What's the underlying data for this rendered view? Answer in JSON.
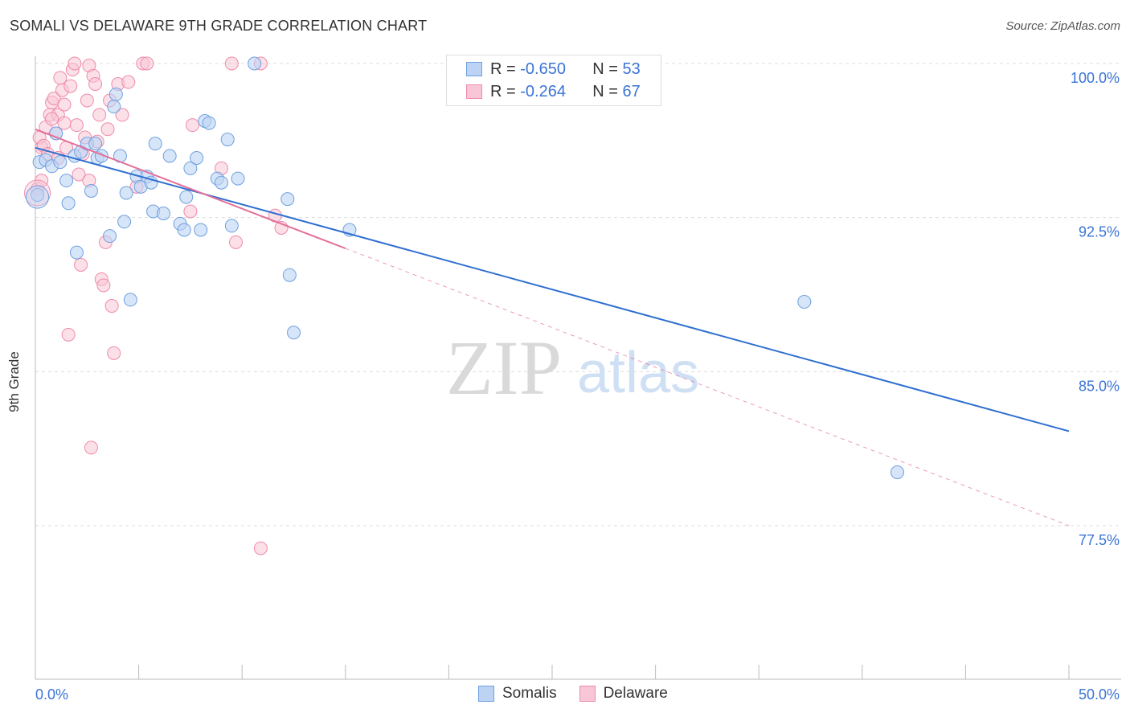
{
  "title": "SOMALI VS DELAWARE 9TH GRADE CORRELATION CHART",
  "source": "Source: ZipAtlas.com",
  "watermark": {
    "zip": "ZIP",
    "atlas": "atlas"
  },
  "legend": {
    "rows": [
      {
        "r_label": "R =",
        "r_value": "-0.650",
        "n_label": "N =",
        "n_value": "53"
      },
      {
        "r_label": "R =",
        "r_value": "-0.264",
        "n_label": "N =",
        "n_value": "67"
      }
    ]
  },
  "bottom_legend": [
    "Somalis",
    "Delaware"
  ],
  "chart_data": {
    "type": "scatter",
    "title": "SOMALI VS DELAWARE 9TH GRADE CORRELATION CHART",
    "ylabel": "9th Grade",
    "xlabel": "",
    "xlim": [
      0,
      50
    ],
    "ylim": [
      70,
      100.7
    ],
    "x_tick_labels": [
      "0.0%",
      "50.0%"
    ],
    "y_ticks": [
      77.5,
      85.0,
      92.5,
      100.0
    ],
    "y_tick_labels": [
      "77.5%",
      "85.0%",
      "92.5%",
      "100.0%"
    ],
    "grid": true,
    "colors": {
      "Somalis": "#6fa0e0",
      "Delaware": "#f08aaa",
      "somali_line": "#2f6fd0",
      "delaware_line": "#e36f9a"
    },
    "series": [
      {
        "name": "Somalis",
        "r": -0.65,
        "n": 53,
        "trend": {
          "x0": 0,
          "y0": 95.9,
          "x1": 50,
          "y1": 82.1
        },
        "points": [
          [
            0.1,
            93.6
          ],
          [
            0.2,
            95.2
          ],
          [
            0.5,
            95.3
          ],
          [
            0.8,
            95.0
          ],
          [
            1.0,
            96.6
          ],
          [
            1.2,
            95.2
          ],
          [
            1.5,
            94.3
          ],
          [
            1.6,
            93.2
          ],
          [
            1.9,
            95.5
          ],
          [
            2.0,
            90.8
          ],
          [
            2.2,
            95.7
          ],
          [
            2.5,
            96.1
          ],
          [
            2.7,
            93.8
          ],
          [
            2.9,
            96.1
          ],
          [
            3.0,
            95.4
          ],
          [
            3.2,
            95.5
          ],
          [
            3.6,
            91.6
          ],
          [
            3.8,
            97.9
          ],
          [
            3.9,
            98.5
          ],
          [
            4.1,
            95.5
          ],
          [
            4.3,
            92.3
          ],
          [
            4.4,
            93.7
          ],
          [
            4.6,
            88.5
          ],
          [
            4.9,
            94.5
          ],
          [
            5.1,
            94.0
          ],
          [
            5.4,
            94.5
          ],
          [
            5.6,
            94.2
          ],
          [
            5.7,
            92.8
          ],
          [
            5.8,
            96.1
          ],
          [
            6.2,
            92.7
          ],
          [
            6.5,
            95.5
          ],
          [
            7.0,
            92.2
          ],
          [
            7.2,
            91.9
          ],
          [
            7.3,
            93.5
          ],
          [
            7.5,
            94.9
          ],
          [
            7.8,
            95.4
          ],
          [
            8.0,
            91.9
          ],
          [
            8.2,
            97.2
          ],
          [
            8.4,
            97.1
          ],
          [
            8.8,
            94.4
          ],
          [
            9.0,
            94.2
          ],
          [
            9.3,
            96.3
          ],
          [
            9.5,
            92.1
          ],
          [
            9.8,
            94.4
          ],
          [
            10.6,
            100.0
          ],
          [
            12.2,
            93.4
          ],
          [
            12.3,
            89.7
          ],
          [
            12.5,
            86.9
          ],
          [
            15.2,
            91.9
          ],
          [
            37.2,
            88.4
          ],
          [
            41.7,
            80.1
          ]
        ]
      },
      {
        "name": "Delaware",
        "r": -0.264,
        "n": 67,
        "trend": {
          "x0": 0,
          "y0": 96.8,
          "x1": 15,
          "y1": 91.0,
          "dash_x1": 50,
          "dash_y1": 77.5
        },
        "points": [
          [
            0.1,
            93.9
          ],
          [
            0.2,
            96.4
          ],
          [
            0.3,
            95.9
          ],
          [
            0.4,
            96.0
          ],
          [
            0.5,
            96.9
          ],
          [
            0.6,
            95.6
          ],
          [
            0.7,
            97.5
          ],
          [
            0.8,
            98.1
          ],
          [
            0.9,
            98.3
          ],
          [
            1.0,
            96.6
          ],
          [
            1.1,
            97.5
          ],
          [
            1.2,
            99.3
          ],
          [
            1.3,
            98.7
          ],
          [
            1.4,
            97.1
          ],
          [
            1.5,
            95.9
          ],
          [
            1.6,
            86.8
          ],
          [
            1.7,
            98.9
          ],
          [
            1.8,
            99.7
          ],
          [
            1.9,
            100.0
          ],
          [
            2.0,
            97.0
          ],
          [
            2.1,
            94.6
          ],
          [
            2.2,
            90.2
          ],
          [
            2.3,
            95.6
          ],
          [
            2.4,
            96.4
          ],
          [
            2.5,
            98.2
          ],
          [
            2.6,
            99.9
          ],
          [
            2.7,
            81.3
          ],
          [
            2.8,
            99.4
          ],
          [
            2.9,
            99.0
          ],
          [
            3.0,
            96.2
          ],
          [
            3.1,
            97.5
          ],
          [
            3.2,
            89.5
          ],
          [
            3.3,
            89.2
          ],
          [
            3.4,
            91.3
          ],
          [
            3.5,
            96.8
          ],
          [
            3.6,
            98.2
          ],
          [
            3.7,
            88.2
          ],
          [
            3.8,
            85.9
          ],
          [
            4.0,
            99.0
          ],
          [
            4.2,
            97.5
          ],
          [
            4.5,
            99.1
          ],
          [
            4.9,
            94.0
          ],
          [
            5.2,
            100.0
          ],
          [
            5.4,
            100.0
          ],
          [
            7.5,
            92.8
          ],
          [
            7.6,
            97.0
          ],
          [
            9.0,
            94.9
          ],
          [
            9.5,
            100.0
          ],
          [
            9.7,
            91.3
          ],
          [
            10.9,
            76.4
          ],
          [
            10.9,
            100.0
          ],
          [
            11.6,
            92.6
          ],
          [
            11.9,
            92.0
          ],
          [
            0.3,
            94.3
          ],
          [
            1.1,
            95.4
          ],
          [
            2.6,
            94.3
          ],
          [
            0.8,
            97.3
          ],
          [
            1.4,
            98.0
          ]
        ]
      }
    ]
  }
}
